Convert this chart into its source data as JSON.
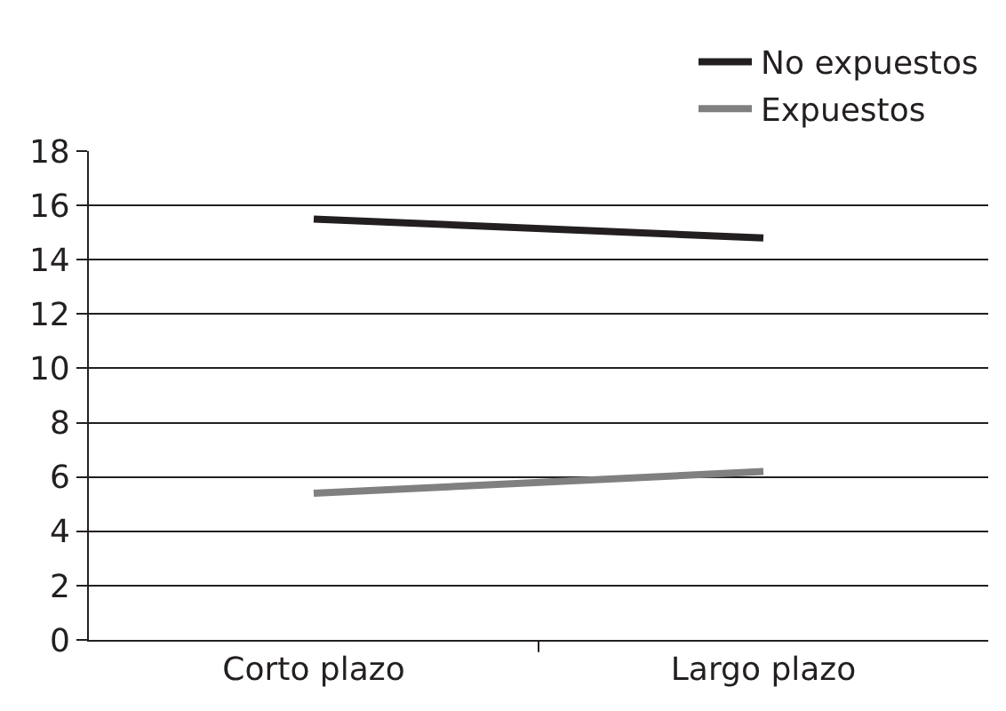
{
  "chart_data": {
    "type": "line",
    "categories": [
      "Corto plazo",
      "Largo plazo"
    ],
    "series": [
      {
        "name": "No expuestos",
        "color": "#231f20",
        "values": [
          15.5,
          14.8
        ]
      },
      {
        "name": "Expuestos",
        "color": "#808080",
        "values": [
          5.4,
          6.2
        ]
      }
    ],
    "ylim": [
      0,
      18
    ],
    "yticks": [
      0,
      2,
      4,
      6,
      8,
      10,
      12,
      14,
      16,
      18
    ],
    "grid": "y",
    "legend": "top right",
    "marker": "none",
    "line_style": "solid"
  }
}
